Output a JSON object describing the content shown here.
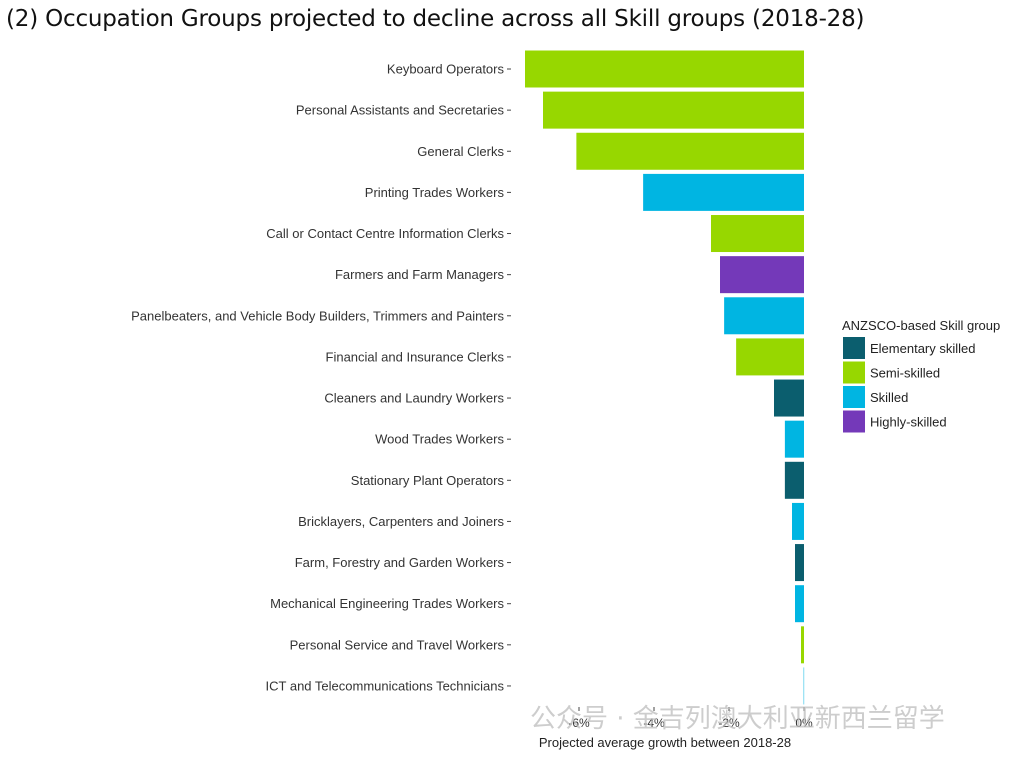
{
  "title": "(2)   Occupation Groups projected to decline across all Skill groups (2018-28)",
  "watermark": "公众号 · 金吉列澳大利亚新西兰留学",
  "chart_data": {
    "type": "bar",
    "orientation": "horizontal",
    "title": "Occupation Groups projected to decline across all Skill groups (2018-28)",
    "xlabel": "Projected average growth between 2018-28",
    "ylabel": "",
    "xlim": [
      -7.6,
      0.2
    ],
    "xticks": [
      -6,
      -4,
      -2,
      0
    ],
    "xtick_labels": [
      "-6%",
      "-4%",
      "-2%",
      "0%"
    ],
    "grid": false,
    "legend": {
      "title": "ANZSCO-based Skill group",
      "placement": "right",
      "entries": [
        {
          "name": "Elementary skilled",
          "color": "#0b5e6e"
        },
        {
          "name": "Semi-skilled",
          "color": "#97d700"
        },
        {
          "name": "Skilled",
          "color": "#00b5e2"
        },
        {
          "name": "Highly-skilled",
          "color": "#7439b9"
        }
      ]
    },
    "categories": [
      "Keyboard Operators",
      "Personal Assistants and Secretaries",
      "General Clerks",
      "Printing Trades Workers",
      "Call or Contact Centre Information Clerks",
      "Farmers and Farm Managers",
      "Panelbeaters, and Vehicle Body Builders, Trimmers and Painters",
      "Financial and Insurance Clerks",
      "Cleaners and Laundry Workers",
      "Wood Trades Workers",
      "Stationary Plant Operators",
      "Bricklayers, Carpenters and Joiners",
      "Farm, Forestry and Garden Workers",
      "Mechanical Engineering Trades Workers",
      "Personal Service and Travel Workers",
      "ICT and Telecommunications Technicians"
    ],
    "values": [
      -7.44,
      -6.96,
      -6.07,
      -4.29,
      -2.48,
      -2.24,
      -2.13,
      -1.81,
      -0.8,
      -0.51,
      -0.51,
      -0.32,
      -0.24,
      -0.24,
      -0.08,
      -0.01
    ],
    "groups": [
      "Semi-skilled",
      "Semi-skilled",
      "Semi-skilled",
      "Skilled",
      "Semi-skilled",
      "Highly-skilled",
      "Skilled",
      "Semi-skilled",
      "Elementary skilled",
      "Skilled",
      "Elementary skilled",
      "Skilled",
      "Elementary skilled",
      "Skilled",
      "Semi-skilled",
      "Skilled"
    ]
  }
}
